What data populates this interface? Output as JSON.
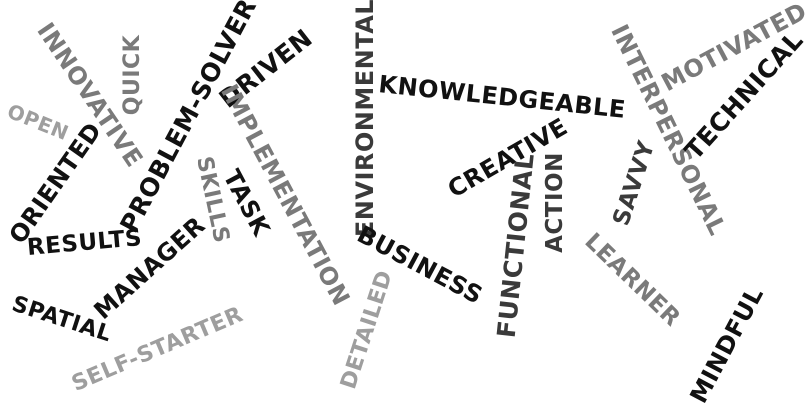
{
  "colors": {
    "black": "#111111",
    "dark": "#3a3a3a",
    "gray": "#7a7a7a",
    "light": "#9e9e9e"
  },
  "words": [
    {
      "text": "INNOVATIVE",
      "shade": "gray"
    },
    {
      "text": "QUICK",
      "shade": "gray"
    },
    {
      "text": "OPEN",
      "shade": "light"
    },
    {
      "text": "ORIENTED",
      "shade": "black"
    },
    {
      "text": "PROBLEM-SOLVER",
      "shade": "black"
    },
    {
      "text": "DRIVEN",
      "shade": "black"
    },
    {
      "text": "IMPLEMENTATION",
      "shade": "gray"
    },
    {
      "text": "SKILLS",
      "shade": "gray"
    },
    {
      "text": "TASK",
      "shade": "black"
    },
    {
      "text": "RESULTS",
      "shade": "black"
    },
    {
      "text": "MANAGER",
      "shade": "black"
    },
    {
      "text": "SPATIAL",
      "shade": "black"
    },
    {
      "text": "SELF-STARTER",
      "shade": "light"
    },
    {
      "text": "ENVIRONMENTAL",
      "shade": "dark"
    },
    {
      "text": "KNOWLEDGEABLE",
      "shade": "black"
    },
    {
      "text": "BUSINESS",
      "shade": "black"
    },
    {
      "text": "DETAILED",
      "shade": "light"
    },
    {
      "text": "CREATIVE",
      "shade": "black"
    },
    {
      "text": "FUNCTIONAL",
      "shade": "dark"
    },
    {
      "text": "ACTION",
      "shade": "dark"
    },
    {
      "text": "INTERPERSONAL",
      "shade": "gray"
    },
    {
      "text": "MOTIVATED",
      "shade": "gray"
    },
    {
      "text": "TECHNICAL",
      "shade": "black"
    },
    {
      "text": "SAVVY",
      "shade": "dark"
    },
    {
      "text": "LEARNER",
      "shade": "gray"
    },
    {
      "text": "MINDFUL",
      "shade": "black"
    }
  ]
}
